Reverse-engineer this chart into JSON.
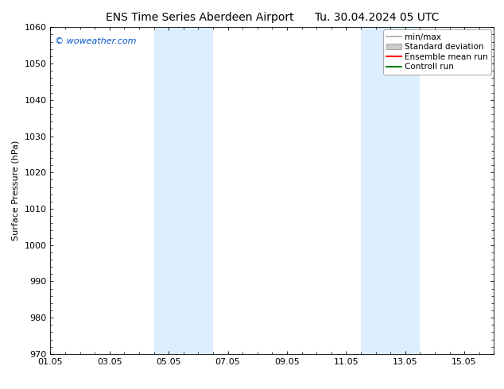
{
  "title": "ENS Time Series Aberdeen Airport",
  "title_date": "Tu. 30.04.2024 05 UTC",
  "ylabel": "Surface Pressure (hPa)",
  "ylim": [
    970,
    1060
  ],
  "yticks": [
    970,
    980,
    990,
    1000,
    1010,
    1020,
    1030,
    1040,
    1050,
    1060
  ],
  "xtick_labels": [
    "01.05",
    "03.05",
    "05.05",
    "07.05",
    "09.05",
    "11.05",
    "13.05",
    "15.05"
  ],
  "xtick_days": [
    0,
    2,
    4,
    6,
    8,
    10,
    12,
    14
  ],
  "xlim_days": [
    0,
    15
  ],
  "shaded_regions": [
    {
      "start": 3.5,
      "end": 5.5
    },
    {
      "start": 10.5,
      "end": 12.5
    }
  ],
  "shaded_color": "#ddeeff",
  "background_color": "#ffffff",
  "watermark_text": "© woweather.com",
  "watermark_color": "#0055cc",
  "legend_items": [
    {
      "label": "min/max",
      "color": "#aaaaaa",
      "lw": 1.2,
      "type": "line"
    },
    {
      "label": "Standard deviation",
      "color": "#cccccc",
      "lw": 6,
      "type": "patch"
    },
    {
      "label": "Ensemble mean run",
      "color": "#ff0000",
      "lw": 1.5,
      "type": "line"
    },
    {
      "label": "Controll run",
      "color": "#008000",
      "lw": 1.5,
      "type": "line"
    }
  ],
  "title_fontsize": 10,
  "tick_fontsize": 8,
  "ylabel_fontsize": 8,
  "legend_fontsize": 7.5,
  "watermark_fontsize": 8
}
